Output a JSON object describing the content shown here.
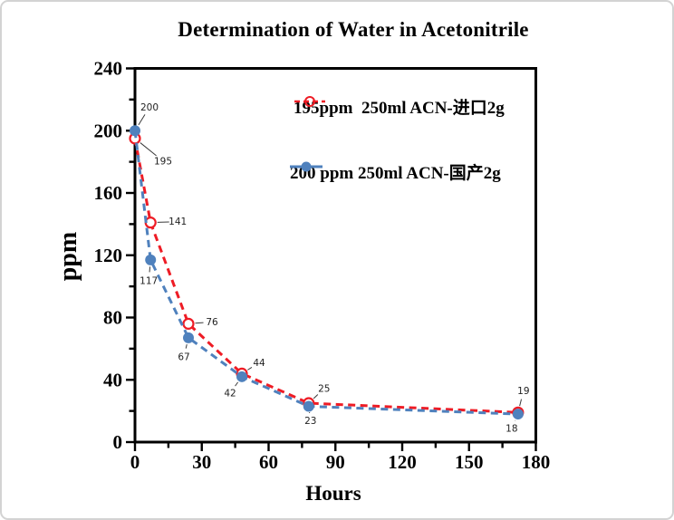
{
  "frame": {
    "border_color": "#d3d3d3",
    "background": "#ffffff"
  },
  "chart_data": {
    "type": "line",
    "title": "Determination of Water in Acetonitrile",
    "xlabel": "Hours",
    "ylabel": "ppm",
    "xlim": [
      0,
      180
    ],
    "ylim": [
      0,
      240
    ],
    "xticks_major": [
      0,
      30,
      60,
      90,
      120,
      150,
      180
    ],
    "xticks_minor_step": 15,
    "yticks_major": [
      0,
      40,
      80,
      120,
      160,
      200,
      240
    ],
    "yticks_minor_step": 20,
    "grid": false,
    "legend_position": "upper-right-inside",
    "axis_color": "#000000",
    "annotation_line_color": "#3a3a3a",
    "series": [
      {
        "name": "195ppm  250ml ACN-进口2g",
        "color": "#ee1c25",
        "marker": "open-circle",
        "line_style": "dashed",
        "x": [
          0,
          7,
          24,
          48,
          78,
          172
        ],
        "y": [
          195,
          141,
          76,
          44,
          25,
          19
        ],
        "labels": [
          "195",
          "141",
          "76",
          "44",
          "25",
          "19"
        ],
        "label_offsets": [
          [
            31,
            25
          ],
          [
            30,
            -1
          ],
          [
            26,
            -2
          ],
          [
            19,
            -12
          ],
          [
            17,
            -16
          ],
          [
            6,
            -24
          ]
        ]
      },
      {
        "name": "200 ppm 250ml ACN-国产2g",
        "color": "#4f81bd",
        "marker": "filled-circle",
        "line_style": "dashed",
        "x": [
          0,
          7,
          24,
          48,
          78,
          172
        ],
        "y": [
          200,
          117,
          67,
          42,
          23,
          18
        ],
        "labels": [
          "200",
          "117",
          "67",
          "42",
          "23",
          "18"
        ],
        "label_offsets": [
          [
            16,
            -26
          ],
          [
            -2,
            23
          ],
          [
            -5,
            21
          ],
          [
            -13,
            18
          ],
          [
            2,
            16
          ],
          [
            -7,
            16
          ]
        ]
      }
    ]
  }
}
